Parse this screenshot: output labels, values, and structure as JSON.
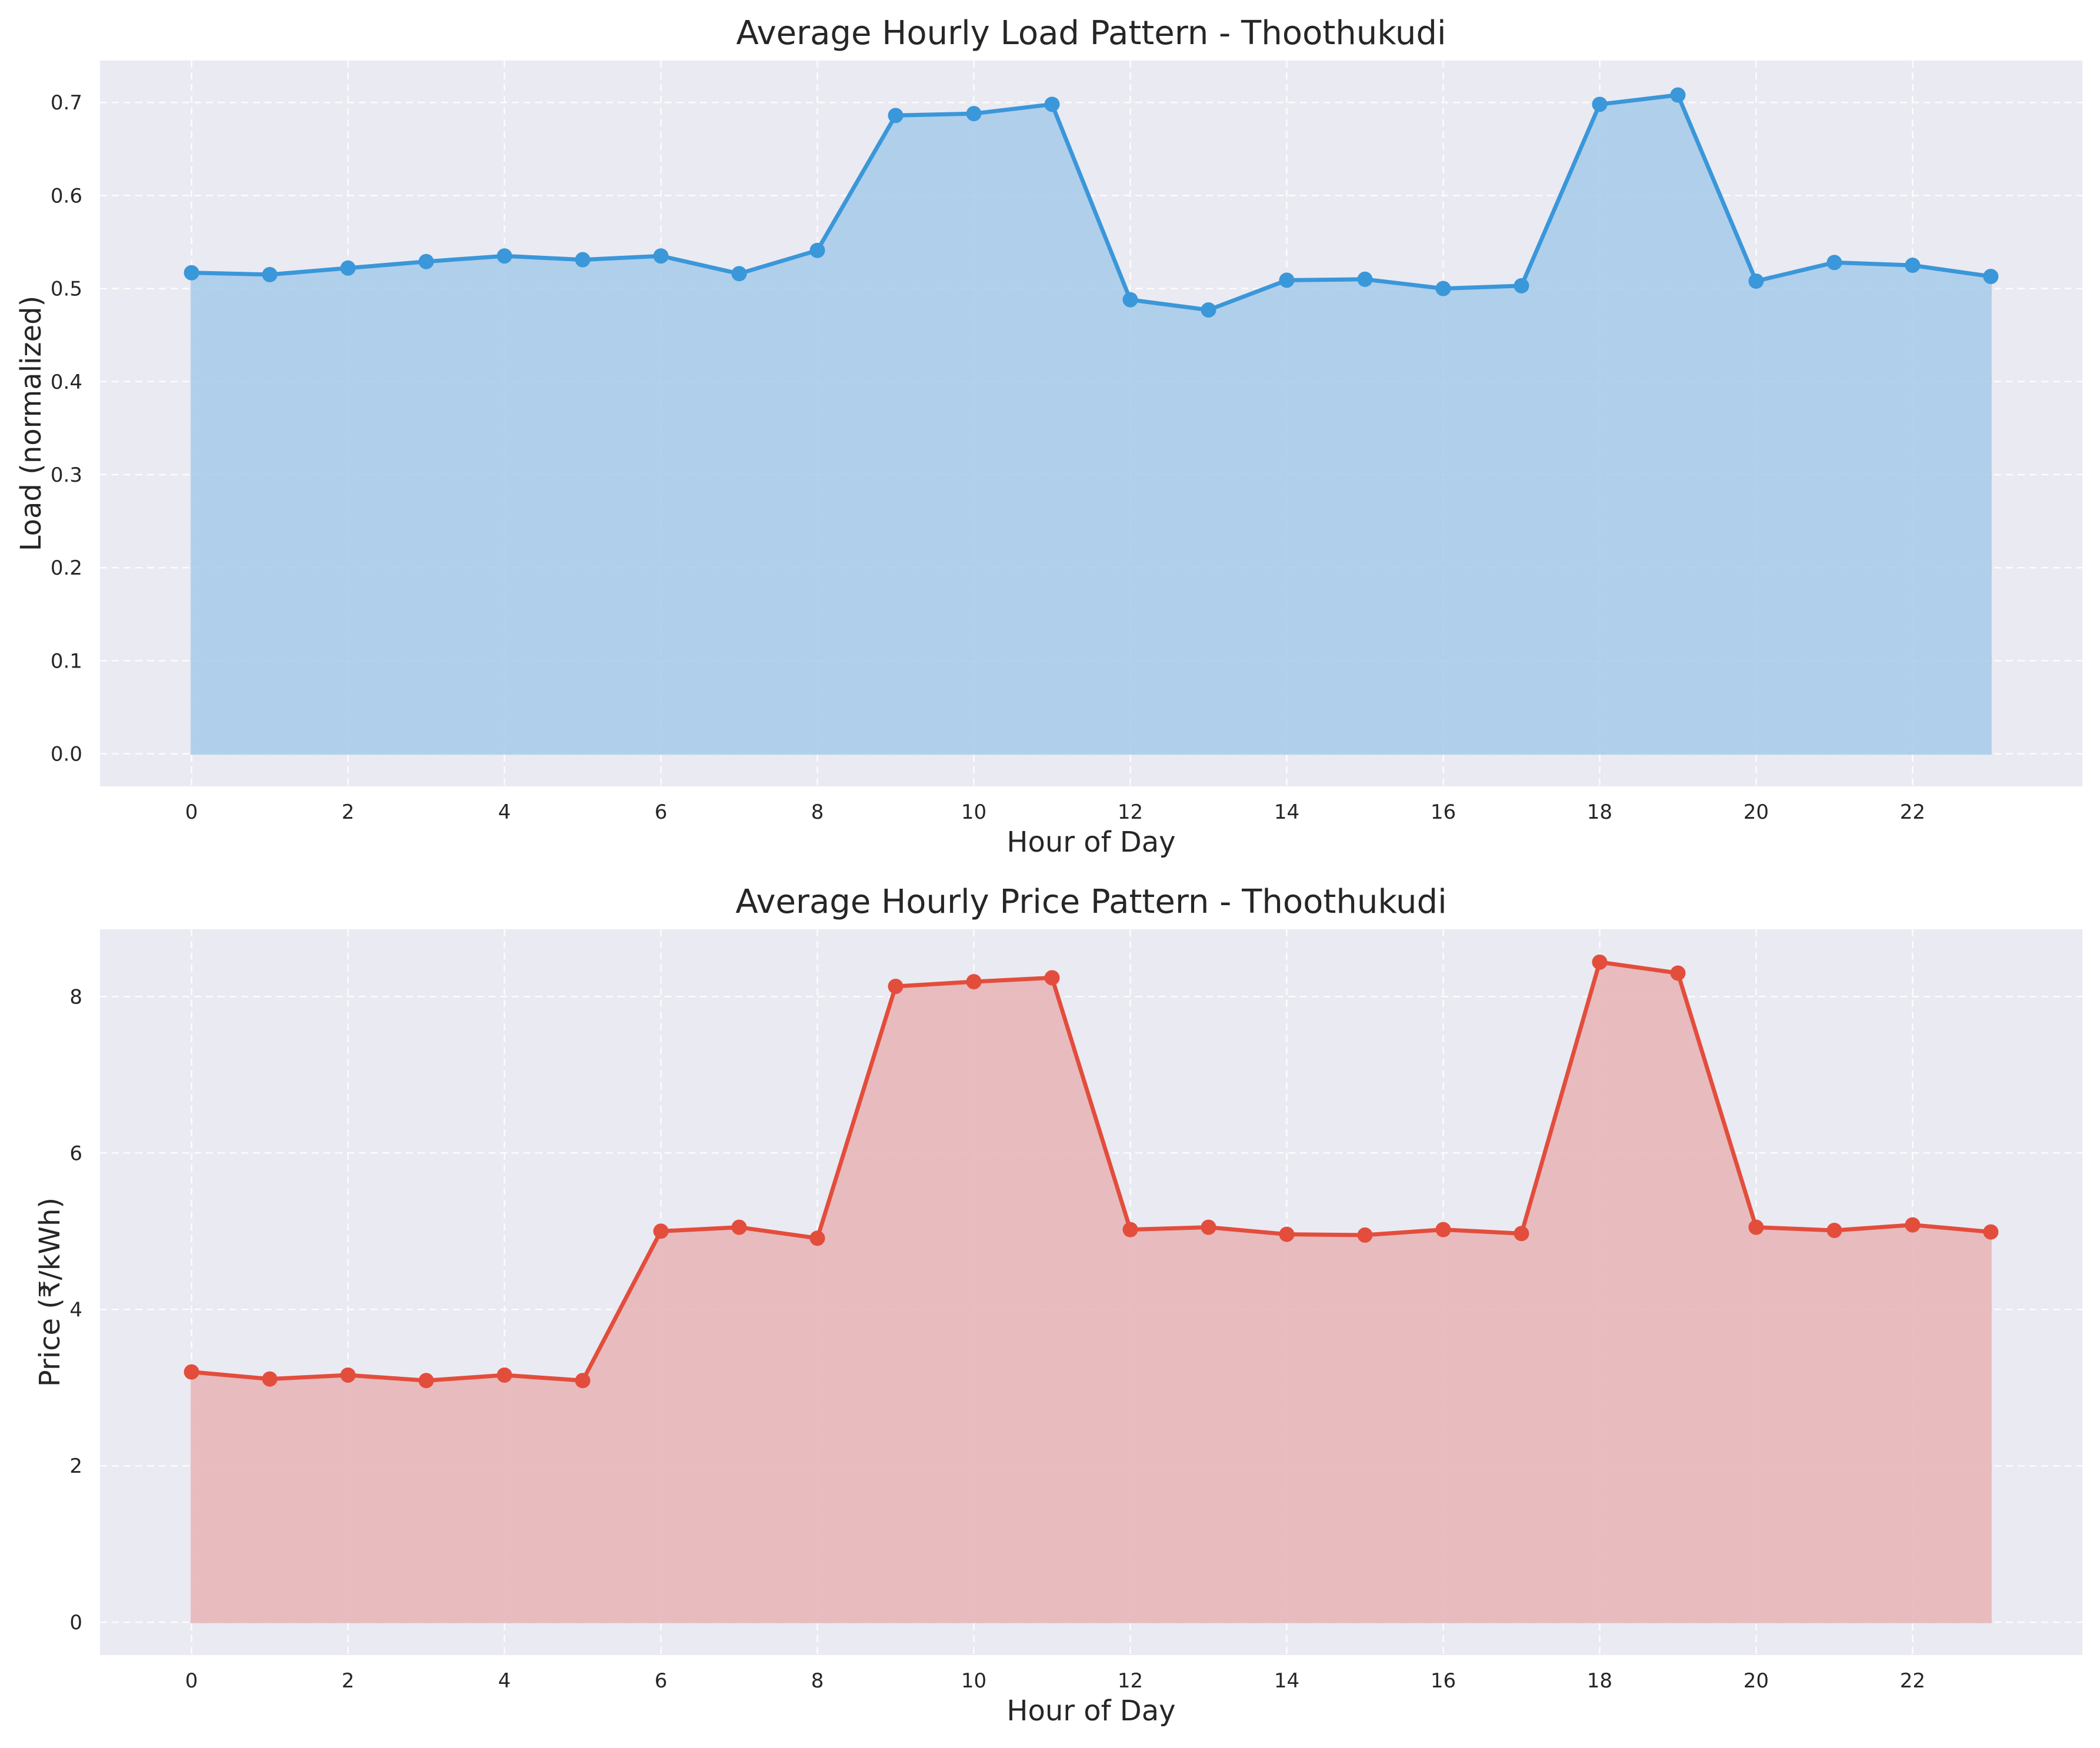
{
  "chart_data": [
    {
      "type": "area",
      "title": "Average Hourly Load Pattern - Thoothukudi",
      "xlabel": "Hour of Day",
      "ylabel": "Load (normalized)",
      "x": [
        0,
        1,
        2,
        3,
        4,
        5,
        6,
        7,
        8,
        9,
        10,
        11,
        12,
        13,
        14,
        15,
        16,
        17,
        18,
        19,
        20,
        21,
        22,
        23
      ],
      "values": [
        0.517,
        0.515,
        0.522,
        0.529,
        0.535,
        0.531,
        0.535,
        0.516,
        0.541,
        0.686,
        0.688,
        0.698,
        0.488,
        0.477,
        0.509,
        0.51,
        0.5,
        0.503,
        0.698,
        0.708,
        0.508,
        0.528,
        0.525,
        0.513
      ],
      "xticks": [
        0,
        2,
        4,
        6,
        8,
        10,
        12,
        14,
        16,
        18,
        20,
        22
      ],
      "yticks": [
        0.0,
        0.1,
        0.2,
        0.3,
        0.4,
        0.5,
        0.6,
        0.7
      ],
      "xtick_labels": [
        "0",
        "2",
        "4",
        "6",
        "8",
        "10",
        "12",
        "14",
        "16",
        "18",
        "20",
        "22"
      ],
      "ytick_labels": [
        "0.0",
        "0.1",
        "0.2",
        "0.3",
        "0.4",
        "0.5",
        "0.6",
        "0.7"
      ],
      "xlim": [
        -1.17,
        24.17
      ],
      "ylim": [
        -0.035,
        0.745
      ],
      "grid": true,
      "line_color": "#3a97d9",
      "fill_color": "#a7cbea"
    },
    {
      "type": "area",
      "title": "Average Hourly Price Pattern - Thoothukudi",
      "xlabel": "Hour of Day",
      "ylabel": "Price (₹/kWh)",
      "x": [
        0,
        1,
        2,
        3,
        4,
        5,
        6,
        7,
        8,
        9,
        10,
        11,
        12,
        13,
        14,
        15,
        16,
        17,
        18,
        19,
        20,
        21,
        22,
        23
      ],
      "values": [
        3.2,
        3.11,
        3.16,
        3.09,
        3.16,
        3.09,
        5.0,
        5.05,
        4.91,
        8.13,
        8.19,
        8.24,
        5.02,
        5.05,
        4.96,
        4.95,
        5.02,
        4.97,
        8.44,
        8.3,
        5.05,
        5.01,
        5.08,
        4.99
      ],
      "xticks": [
        0,
        2,
        4,
        6,
        8,
        10,
        12,
        14,
        16,
        18,
        20,
        22
      ],
      "yticks": [
        0,
        2,
        4,
        6,
        8
      ],
      "xtick_labels": [
        "0",
        "2",
        "4",
        "6",
        "8",
        "10",
        "12",
        "14",
        "16",
        "18",
        "20",
        "22"
      ],
      "ytick_labels": [
        "0",
        "2",
        "4",
        "6",
        "8"
      ],
      "xlim": [
        -1.17,
        24.17
      ],
      "ylim": [
        -0.42,
        8.86
      ],
      "grid": true,
      "line_color": "#e34d3c",
      "fill_color": "#e8b3b5"
    }
  ]
}
